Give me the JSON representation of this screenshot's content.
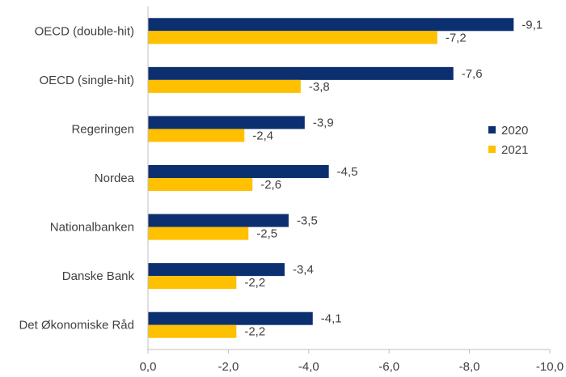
{
  "chart_data": {
    "type": "bar",
    "orientation": "horizontal",
    "title": "",
    "xlabel": "",
    "ylabel": "",
    "xlim": [
      0,
      -10
    ],
    "xticks": [
      0,
      -2,
      -4,
      -6,
      -8,
      -10
    ],
    "xtick_labels": [
      "0,0",
      "-2,0",
      "-4,0",
      "-6,0",
      "-8,0",
      "-10,0"
    ],
    "categories": [
      "OECD (double-hit)",
      "OECD (single-hit)",
      "Regeringen",
      "Nordea",
      "Nationalbanken",
      "Danske Bank",
      "Det Økonomiske Råd"
    ],
    "series": [
      {
        "name": "2020",
        "color": "#0c2f70",
        "values": [
          -9.1,
          -7.6,
          -3.9,
          -4.5,
          -3.5,
          -3.4,
          -4.1
        ],
        "labels": [
          "-9,1",
          "-7,6",
          "-3,9",
          "-4,5",
          "-3,5",
          "-3,4",
          "-4,1"
        ]
      },
      {
        "name": "2021",
        "color": "#ffc000",
        "values": [
          -7.2,
          -3.8,
          -2.4,
          -2.6,
          -2.5,
          -2.2,
          -2.2
        ],
        "labels": [
          "-7,2",
          "-3,8",
          "-2,4",
          "-2,6",
          "-2,5",
          "-2,2",
          "-2,2"
        ]
      }
    ],
    "legend": {
      "position": "right",
      "entries": [
        "2020",
        "2021"
      ]
    },
    "grid": false
  }
}
